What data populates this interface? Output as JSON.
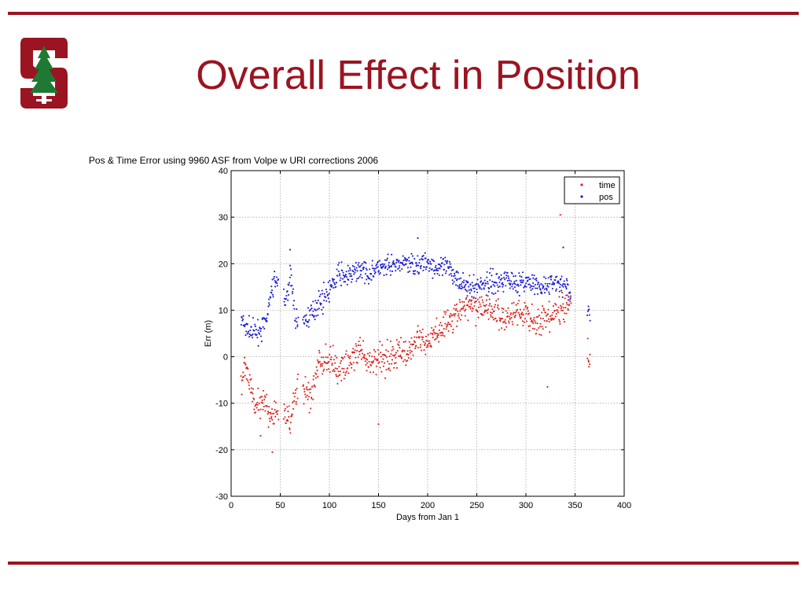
{
  "slide": {
    "title": "Overall Effect in Position",
    "accent_color": "#9b1421",
    "logo_icon": "stanford-tree-s-logo"
  },
  "chart_data": {
    "type": "scatter",
    "title": "Pos & Time Error using 9960 ASF from Volpe w URI corrections 2006",
    "xlabel": "Days from Jan 1",
    "ylabel": "Err (m)",
    "xlim": [
      0,
      400
    ],
    "ylim": [
      -30,
      40
    ],
    "xticks": [
      0,
      50,
      100,
      150,
      200,
      250,
      300,
      350,
      400
    ],
    "yticks": [
      -30,
      -20,
      -10,
      0,
      10,
      20,
      30,
      40
    ],
    "grid": true,
    "legend_position": "top-right",
    "series": [
      {
        "name": "time",
        "color": "#e0201b",
        "marker": "dot",
        "trend": [
          [
            10,
            -7
          ],
          [
            15,
            -2
          ],
          [
            25,
            -10
          ],
          [
            35,
            -10
          ],
          [
            40,
            -14
          ],
          [
            45,
            -12
          ],
          [
            55,
            -12
          ],
          [
            60,
            -15
          ],
          [
            65,
            -8
          ],
          [
            75,
            -7
          ],
          [
            80,
            -9
          ],
          [
            90,
            -1
          ],
          [
            100,
            -1
          ],
          [
            110,
            -3
          ],
          [
            120,
            -1
          ],
          [
            130,
            1
          ],
          [
            140,
            -2
          ],
          [
            150,
            0
          ],
          [
            160,
            0
          ],
          [
            170,
            1
          ],
          [
            180,
            1
          ],
          [
            190,
            4
          ],
          [
            200,
            3
          ],
          [
            210,
            5
          ],
          [
            220,
            8
          ],
          [
            230,
            9
          ],
          [
            240,
            11
          ],
          [
            250,
            11
          ],
          [
            260,
            11
          ],
          [
            270,
            9
          ],
          [
            280,
            8
          ],
          [
            290,
            10
          ],
          [
            300,
            9
          ],
          [
            310,
            7
          ],
          [
            320,
            8
          ],
          [
            330,
            9
          ],
          [
            340,
            11
          ],
          [
            345,
            12
          ],
          [
            365,
            -1
          ]
        ],
        "highlights": [
          {
            "x": 335,
            "y": 30.5
          },
          {
            "x": 42,
            "y": -20.5
          },
          {
            "x": 150,
            "y": -14.5
          },
          {
            "x": 322,
            "y": -6.5
          },
          {
            "x": 30,
            "y": -17
          }
        ]
      },
      {
        "name": "pos",
        "color": "#1a1ad6",
        "marker": "dot",
        "trend": [
          [
            10,
            8
          ],
          [
            15,
            6
          ],
          [
            25,
            5
          ],
          [
            35,
            7
          ],
          [
            40,
            13
          ],
          [
            45,
            17
          ],
          [
            55,
            11
          ],
          [
            60,
            18
          ],
          [
            65,
            8
          ],
          [
            75,
            8
          ],
          [
            80,
            9
          ],
          [
            90,
            12
          ],
          [
            100,
            14
          ],
          [
            110,
            18
          ],
          [
            120,
            17
          ],
          [
            130,
            19
          ],
          [
            140,
            18
          ],
          [
            150,
            19
          ],
          [
            160,
            19
          ],
          [
            170,
            20
          ],
          [
            180,
            20
          ],
          [
            190,
            20
          ],
          [
            200,
            20
          ],
          [
            210,
            19
          ],
          [
            220,
            19
          ],
          [
            230,
            17
          ],
          [
            240,
            15
          ],
          [
            250,
            15
          ],
          [
            260,
            16
          ],
          [
            270,
            16
          ],
          [
            280,
            17
          ],
          [
            290,
            16
          ],
          [
            300,
            16
          ],
          [
            310,
            15
          ],
          [
            320,
            15
          ],
          [
            330,
            16
          ],
          [
            340,
            15
          ],
          [
            345,
            14
          ],
          [
            365,
            9
          ]
        ],
        "highlights": [
          {
            "x": 190,
            "y": 25.5
          },
          {
            "x": 338,
            "y": 23.5
          },
          {
            "x": 60,
            "y": 23
          }
        ]
      }
    ]
  }
}
